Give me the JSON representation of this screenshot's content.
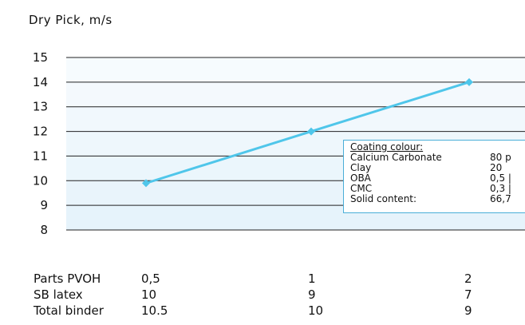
{
  "chart_data": {
    "type": "line",
    "title": "Dry Pick, m/s",
    "x": [
      "0,5",
      "1",
      "2"
    ],
    "series": [
      {
        "values": [
          9.9,
          12,
          14
        ]
      }
    ],
    "ylim": [
      8,
      15
    ],
    "yticks": [
      8,
      9,
      10,
      11,
      12,
      13,
      14,
      15
    ],
    "grid": true,
    "line_color": "#4fc6ea",
    "band_color": "#e6f3fb"
  },
  "legend": {
    "heading": "Coating colour:",
    "rows": [
      {
        "name": "Calcium Carbonate",
        "value": "80 p"
      },
      {
        "name": "Clay",
        "value": "20"
      },
      {
        "name": "OBA",
        "value": "0,5 |"
      },
      {
        "name": "CMC",
        "value": "0,3 |"
      },
      {
        "name": "Solid content:",
        "value": "66,7"
      }
    ]
  },
  "table": [
    {
      "label": "Parts PVOH",
      "values": [
        "0,5",
        "1",
        "2"
      ]
    },
    {
      "label": "SB latex",
      "values": [
        "10",
        "9",
        "7"
      ]
    },
    {
      "label": "Total binder",
      "values": [
        "10.5",
        "10",
        "9"
      ]
    }
  ]
}
